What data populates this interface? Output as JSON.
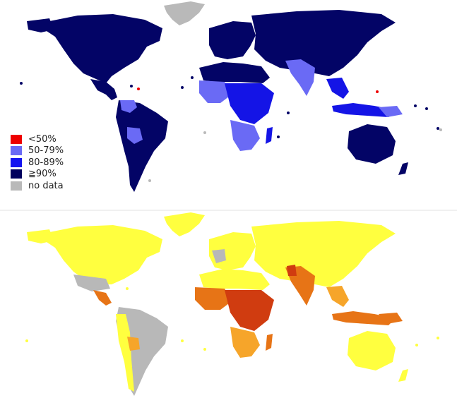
{
  "legend": {
    "items": [
      {
        "label": "<50%",
        "color": "#ee0000"
      },
      {
        "label": "50-79%",
        "color": "#6a6af5"
      },
      {
        "label": "80-89%",
        "color": "#1414f0"
      },
      {
        "label": "≧90%",
        "color": "#00005e"
      },
      {
        "label": "no data",
        "color": "#b9b9b9"
      }
    ]
  },
  "colors": {
    "top_high": "#030466",
    "top_mid": "#1414e6",
    "top_low": "#6a6af5",
    "top_nodata": "#b9b9b9",
    "bottom_yellow": "#ffff3f",
    "bottom_light_orange": "#f6a52a",
    "bottom_orange": "#e77416",
    "bottom_red": "#d03c10",
    "bottom_nodata": "#b8b8b8"
  }
}
